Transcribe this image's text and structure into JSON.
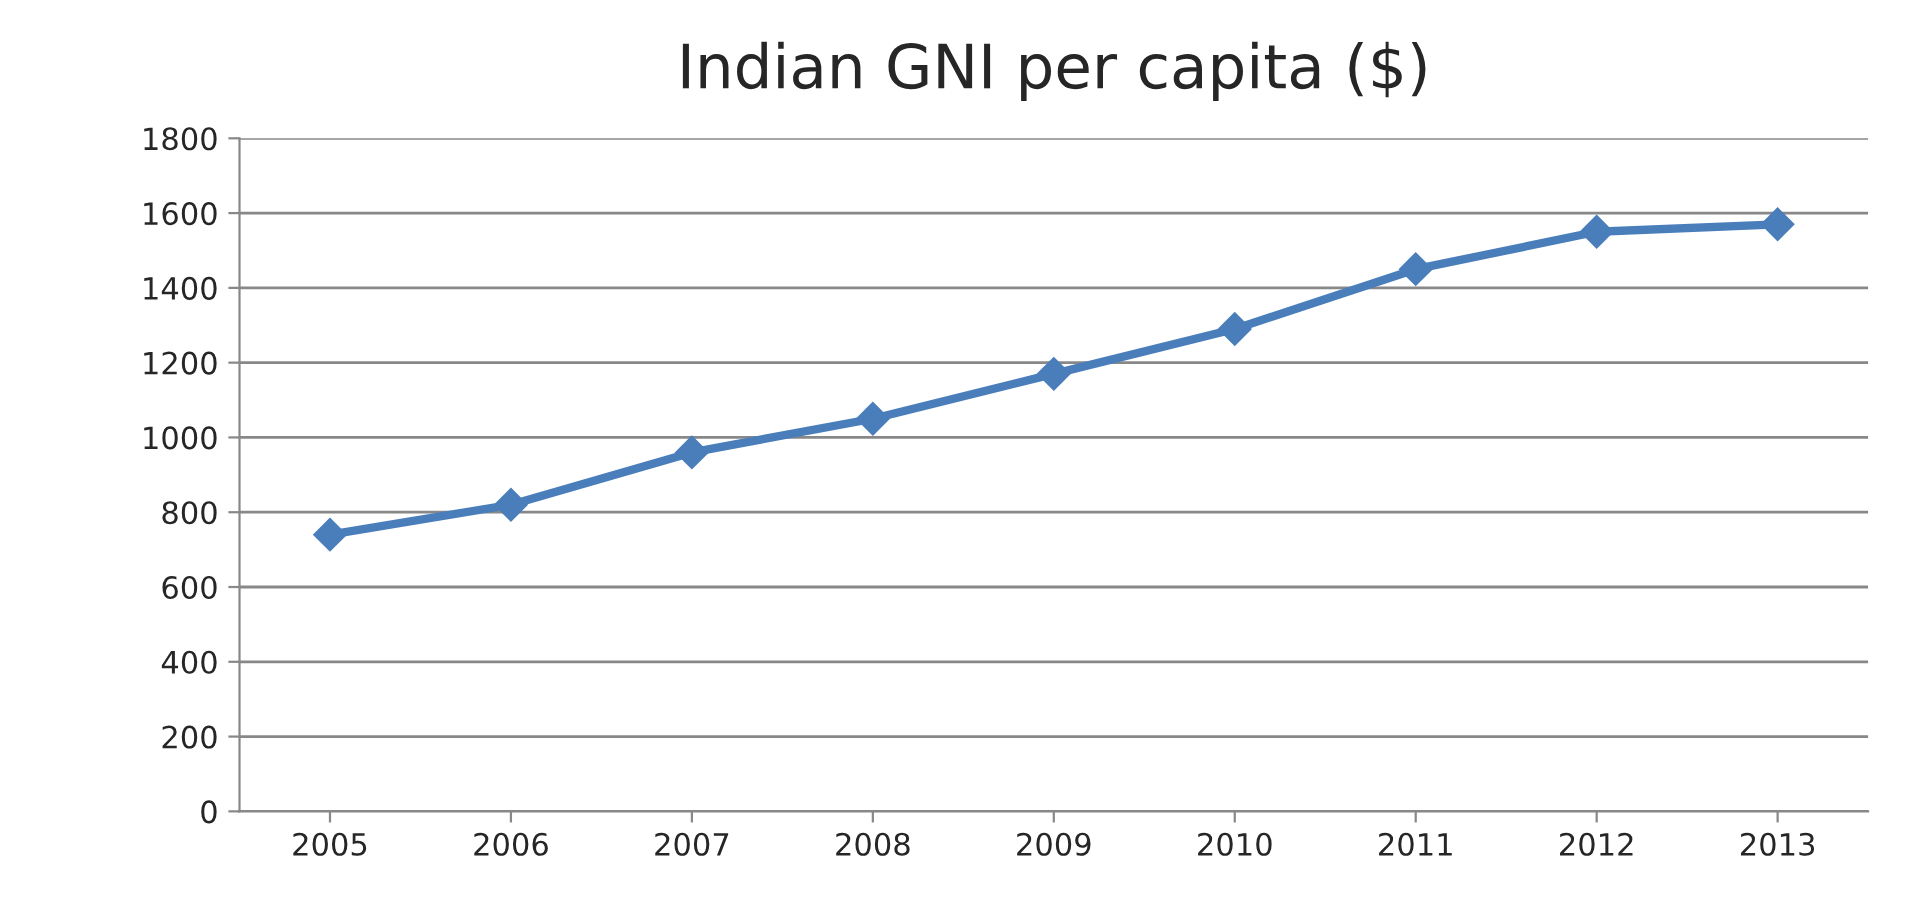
{
  "chart_data": {
    "type": "line",
    "title": "Indian GNI per capita ($)",
    "categories": [
      "2005",
      "2006",
      "2007",
      "2008",
      "2009",
      "2010",
      "2011",
      "2012",
      "2013"
    ],
    "series": [
      {
        "color": "#4a7ebb",
        "values": [
          740,
          820,
          960,
          1050,
          1170,
          1290,
          1450,
          1550,
          1570
        ]
      }
    ],
    "ylim": [
      0,
      1800
    ],
    "yticks": [
      0,
      200,
      400,
      600,
      800,
      1000,
      1200,
      1400,
      1600,
      1800
    ],
    "grid": "y",
    "marker": "diamond",
    "line_style": "solid"
  }
}
